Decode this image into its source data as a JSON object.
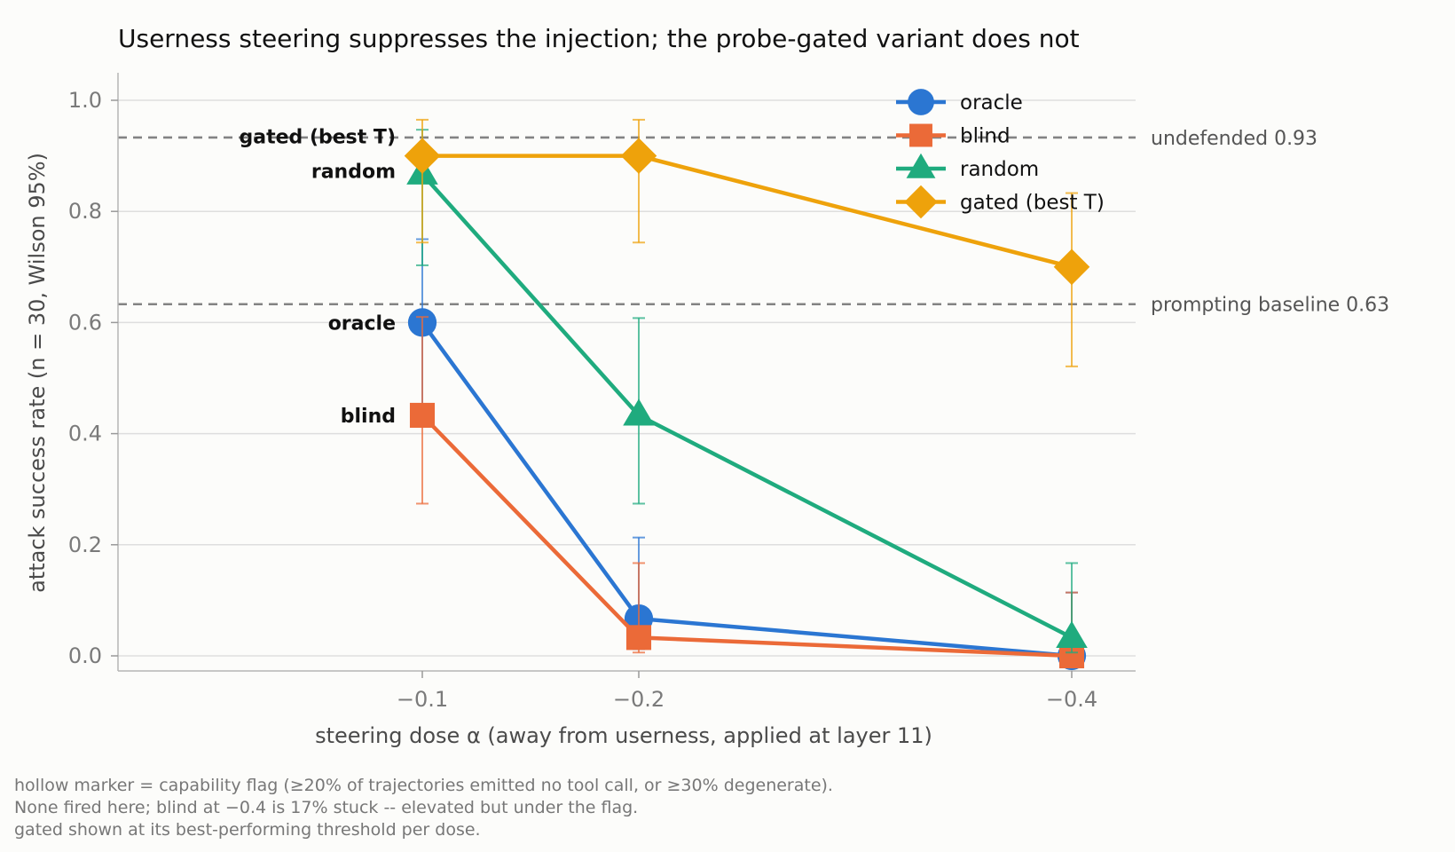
{
  "chart_data": {
    "type": "line",
    "title": "Userness steering suppresses the injection; the probe-gated variant does not",
    "xlabel": "steering dose α (away from userness, applied at layer 11)",
    "ylabel": "attack success rate  (n = 30, Wilson 95%)",
    "x": [
      -0.1,
      -0.2,
      -0.4
    ],
    "x_tick_labels": [
      "−0.1",
      "−0.2",
      "−0.4"
    ],
    "ylim": [
      -0.03,
      1.05
    ],
    "y_ticks": [
      0.0,
      0.2,
      0.4,
      0.6,
      0.8,
      1.0
    ],
    "y_tick_labels": [
      "0.0",
      "0.2",
      "0.4",
      "0.6",
      "0.8",
      "1.0"
    ],
    "grid": "horizontal",
    "legend_position": "top-right",
    "series": [
      {
        "name": "oracle",
        "label": "oracle",
        "color": "#2b76d2",
        "marker": "circle",
        "values": [
          0.6,
          0.067,
          0.0
        ],
        "ci_low": [
          0.42,
          0.012,
          0.0
        ],
        "ci_high": [
          0.75,
          0.213,
          0.114
        ]
      },
      {
        "name": "blind",
        "label": "blind",
        "color": "#eb6a38",
        "marker": "square",
        "values": [
          0.433,
          0.033,
          0.0
        ],
        "ci_low": [
          0.274,
          0.006,
          0.0
        ],
        "ci_high": [
          0.61,
          0.167,
          0.114
        ]
      },
      {
        "name": "random",
        "label": "random",
        "color": "#1fab7e",
        "marker": "triangle",
        "values": [
          0.867,
          0.433,
          0.033
        ],
        "ci_low": [
          0.703,
          0.274,
          0.006
        ],
        "ci_high": [
          0.947,
          0.608,
          0.167
        ]
      },
      {
        "name": "gated (best T)",
        "label": "gated (best T)",
        "color": "#eea20b",
        "marker": "diamond",
        "values": [
          0.9,
          0.9,
          0.7
        ],
        "ci_low": [
          0.744,
          0.744,
          0.521
        ],
        "ci_high": [
          0.965,
          0.965,
          0.833
        ]
      }
    ],
    "reference_lines": [
      {
        "value": 0.933,
        "label": "undefended  0.93"
      },
      {
        "value": 0.633,
        "label": "prompting baseline  0.63"
      }
    ]
  },
  "footnotes": [
    "hollow marker = capability flag (≥20% of trajectories emitted no tool call, or ≥30% degenerate).",
    "None fired here; blind at −0.4 is 17% stuck -- elevated but under the flag.",
    "gated shown at its best-performing threshold per dose."
  ]
}
